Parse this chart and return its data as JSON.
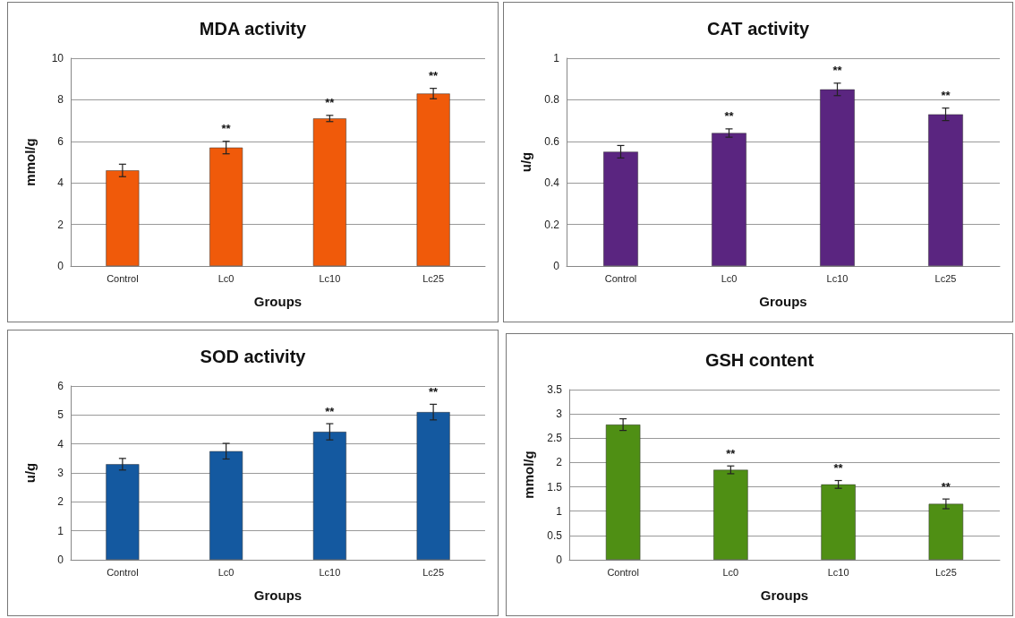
{
  "chart_data": [
    {
      "type": "bar",
      "title": "MDA activity",
      "xlabel": "Groups",
      "ylabel": "mmol/g",
      "categories": [
        "Control",
        "Lc0",
        "Lc10",
        "Lc25"
      ],
      "values": [
        4.6,
        5.7,
        7.1,
        8.3
      ],
      "errors": [
        0.3,
        0.3,
        0.15,
        0.25
      ],
      "color": "#f05a0a",
      "ylim": [
        0,
        10
      ],
      "yticks": [
        0,
        2,
        4,
        6,
        8,
        10
      ],
      "grid": "y",
      "annotations": [
        {
          "text": "**",
          "x": "Lc0",
          "y": 5.7
        },
        {
          "text": "**",
          "x": "Lc10",
          "y": 7.1
        },
        {
          "text": "**",
          "x": "Lc25",
          "y": 8.3
        }
      ]
    },
    {
      "type": "bar",
      "title": "CAT activity",
      "xlabel": "Groups",
      "ylabel": "u/g",
      "categories": [
        "Control",
        "Lc0",
        "Lc10",
        "Lc25"
      ],
      "values": [
        0.55,
        0.64,
        0.85,
        0.73
      ],
      "errors": [
        0.03,
        0.02,
        0.03,
        0.03
      ],
      "color": "#5a2580",
      "ylim": [
        0,
        1
      ],
      "yticks": [
        0,
        0.2,
        0.4,
        0.6,
        0.8,
        1
      ],
      "grid": "y",
      "annotations": [
        {
          "text": "**",
          "x": "Lc0",
          "y": 0.64
        },
        {
          "text": "**",
          "x": "Lc10",
          "y": 0.85
        },
        {
          "text": "**",
          "x": "Lc25",
          "y": 0.73
        }
      ]
    },
    {
      "type": "bar",
      "title": "SOD activity",
      "xlabel": "Groups",
      "ylabel": "u/g",
      "categories": [
        "Control",
        "Lc0",
        "Lc10",
        "Lc25"
      ],
      "values": [
        3.3,
        3.75,
        4.42,
        5.1
      ],
      "errors": [
        0.2,
        0.27,
        0.28,
        0.27
      ],
      "color": "#1459a0",
      "ylim": [
        0,
        6
      ],
      "yticks": [
        0,
        1,
        2,
        3,
        4,
        5,
        6
      ],
      "grid": "y",
      "annotations": [
        {
          "text": "**",
          "x": "Lc10",
          "y": 4.42
        },
        {
          "text": "**",
          "x": "Lc25",
          "y": 5.1
        }
      ]
    },
    {
      "type": "bar",
      "title": "GSH content",
      "xlabel": "Groups",
      "ylabel": "mmol/g",
      "categories": [
        "Control",
        "Lc0",
        "Lc10",
        "Lc25"
      ],
      "values": [
        2.78,
        1.85,
        1.55,
        1.15
      ],
      "errors": [
        0.12,
        0.08,
        0.08,
        0.1
      ],
      "color": "#4f8f14",
      "ylim": [
        0,
        3.5
      ],
      "yticks": [
        0,
        0.5,
        1,
        1.5,
        2,
        2.5,
        3,
        3.5
      ],
      "grid": "y",
      "annotations": [
        {
          "text": "**",
          "x": "Lc0",
          "y": 1.85
        },
        {
          "text": "**",
          "x": "Lc10",
          "y": 1.55
        },
        {
          "text": "**",
          "x": "Lc25",
          "y": 1.15
        }
      ]
    }
  ]
}
